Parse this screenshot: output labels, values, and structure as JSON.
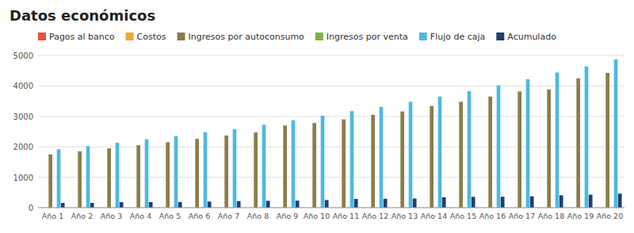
{
  "chart_data": {
    "type": "bar",
    "title": "Datos económicos",
    "categories": [
      "Año 1",
      "Año 2",
      "Año 3",
      "Año 4",
      "Año 5",
      "Año 6",
      "Año 7",
      "Año 8",
      "Año 9",
      "Año 10",
      "Año 11",
      "Año 12",
      "Año 13",
      "Año 14",
      "Año 15",
      "Año 16",
      "Año 17",
      "Año 18",
      "Año 19",
      "Año 20"
    ],
    "series": [
      {
        "name": "Pagos al banco",
        "color": "#e8523a",
        "values": [
          0,
          0,
          0,
          0,
          0,
          0,
          0,
          0,
          0,
          0,
          0,
          0,
          0,
          0,
          0,
          0,
          0,
          0,
          0,
          0
        ]
      },
      {
        "name": "Costos",
        "color": "#f0a830",
        "values": [
          0,
          0,
          0,
          0,
          0,
          0,
          0,
          0,
          0,
          0,
          0,
          0,
          0,
          0,
          0,
          0,
          0,
          0,
          0,
          0
        ]
      },
      {
        "name": "Ingresos por autoconsumo",
        "color": "#8b7d4a",
        "values": [
          1750,
          1850,
          1950,
          2050,
          2150,
          2260,
          2370,
          2470,
          2700,
          2780,
          2900,
          3050,
          3160,
          3340,
          3480,
          3650,
          3820,
          3880,
          4250,
          4430
        ]
      },
      {
        "name": "Ingresos por venta",
        "color": "#7ab648",
        "values": [
          0,
          0,
          0,
          0,
          0,
          0,
          0,
          0,
          0,
          0,
          0,
          0,
          0,
          0,
          0,
          0,
          0,
          0,
          0,
          0
        ]
      },
      {
        "name": "Flujo de caja",
        "color": "#50b8e0",
        "values": [
          1920,
          2020,
          2130,
          2250,
          2350,
          2480,
          2580,
          2720,
          2870,
          3020,
          3170,
          3310,
          3480,
          3650,
          3830,
          4020,
          4220,
          4440,
          4640,
          4870
        ]
      },
      {
        "name": "Acumulado",
        "color": "#1e3f70",
        "values": [
          155,
          155,
          180,
          185,
          185,
          200,
          215,
          225,
          230,
          250,
          285,
          290,
          300,
          340,
          355,
          360,
          370,
          405,
          425,
          460
        ]
      }
    ],
    "ylim": [
      0,
      5000
    ],
    "yticks": [
      0,
      1000,
      2000,
      3000,
      4000,
      5000
    ],
    "grid": true,
    "legend": "upper left"
  }
}
